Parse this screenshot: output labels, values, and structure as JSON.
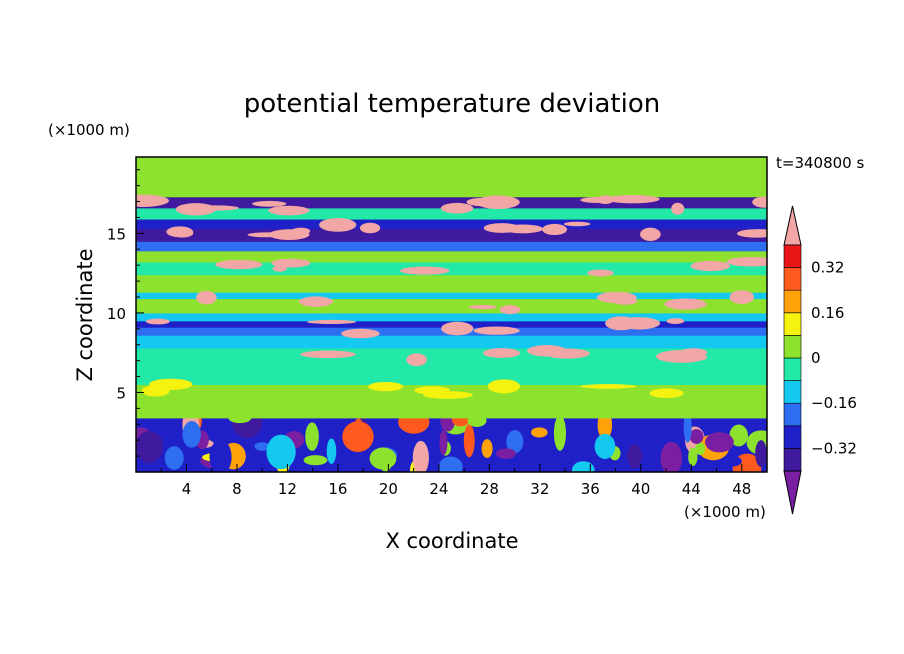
{
  "chart_data": {
    "type": "heatmap",
    "title": "potential temperature deviation",
    "xlabel": "X coordinate",
    "ylabel": "Z coordinate",
    "x_unit": "(×1000 m)",
    "y_unit": "(×1000 m)",
    "time_label": "t=340800 s",
    "xlim": [
      0,
      50
    ],
    "ylim": [
      0,
      19.8
    ],
    "x_ticks": [
      4,
      8,
      12,
      16,
      20,
      24,
      28,
      32,
      36,
      40,
      44,
      48
    ],
    "x_minor_ticks": [
      2,
      6,
      10,
      14,
      18,
      22,
      26,
      30,
      34,
      38,
      42,
      46
    ],
    "y_ticks": [
      5,
      10,
      15
    ],
    "y_minor_ticks": [
      1,
      2,
      3,
      4,
      6,
      7,
      8,
      9,
      11,
      12,
      13,
      14,
      16,
      17,
      18,
      19
    ],
    "colorbar": {
      "levels": [
        -0.4,
        -0.32,
        -0.24,
        -0.16,
        -0.08,
        0,
        0.08,
        0.16,
        0.24,
        0.32,
        0.4
      ],
      "labeled_levels": [
        -0.32,
        -0.16,
        0,
        0.16,
        0.32
      ],
      "tick_labels": [
        "−0.32",
        "−0.16",
        "0",
        "0.16",
        "0.32"
      ],
      "colors": [
        "#7a1fa2",
        "#3f1a9e",
        "#1f20c8",
        "#2e6ef0",
        "#14c8f0",
        "#22e8a8",
        "#8ce22c",
        "#f5f20f",
        "#ffa20a",
        "#ff5a1e",
        "#e81616",
        "#f2a6a6"
      ],
      "extend": "both"
    },
    "layers": [
      {
        "z": [
          0,
          3.4
        ],
        "level": "turbulent"
      },
      {
        "z": [
          3.4,
          5.5
        ],
        "value": 0.02
      },
      {
        "z": [
          5.5,
          7.8
        ],
        "value": -0.02
      },
      {
        "z": [
          7.8,
          8.6
        ],
        "value": -0.1
      },
      {
        "z": [
          8.6,
          9.1
        ],
        "value": -0.2
      },
      {
        "z": [
          9.1,
          9.5
        ],
        "value": -0.3
      },
      {
        "z": [
          9.5,
          10.0
        ],
        "value": -0.15
      },
      {
        "z": [
          10.0,
          10.9
        ],
        "value": 0.02
      },
      {
        "z": [
          10.9,
          11.3
        ],
        "value": -0.15
      },
      {
        "z": [
          11.3,
          12.4
        ],
        "value": 0.01
      },
      {
        "z": [
          12.4,
          13.2
        ],
        "value": -0.06
      },
      {
        "z": [
          13.2,
          13.9
        ],
        "value": 0.02
      },
      {
        "z": [
          13.9,
          14.5
        ],
        "value": -0.17
      },
      {
        "z": [
          14.5,
          15.3
        ],
        "value": -0.36
      },
      {
        "z": [
          15.3,
          15.9
        ],
        "value": -0.25
      },
      {
        "z": [
          15.9,
          16.6
        ],
        "value": -0.06
      },
      {
        "z": [
          16.6,
          17.3
        ],
        "value": -0.33
      },
      {
        "z": [
          17.3,
          18.2
        ],
        "value": 0.05
      },
      {
        "z": [
          18.2,
          19.8
        ],
        "value": 0.03
      }
    ]
  }
}
